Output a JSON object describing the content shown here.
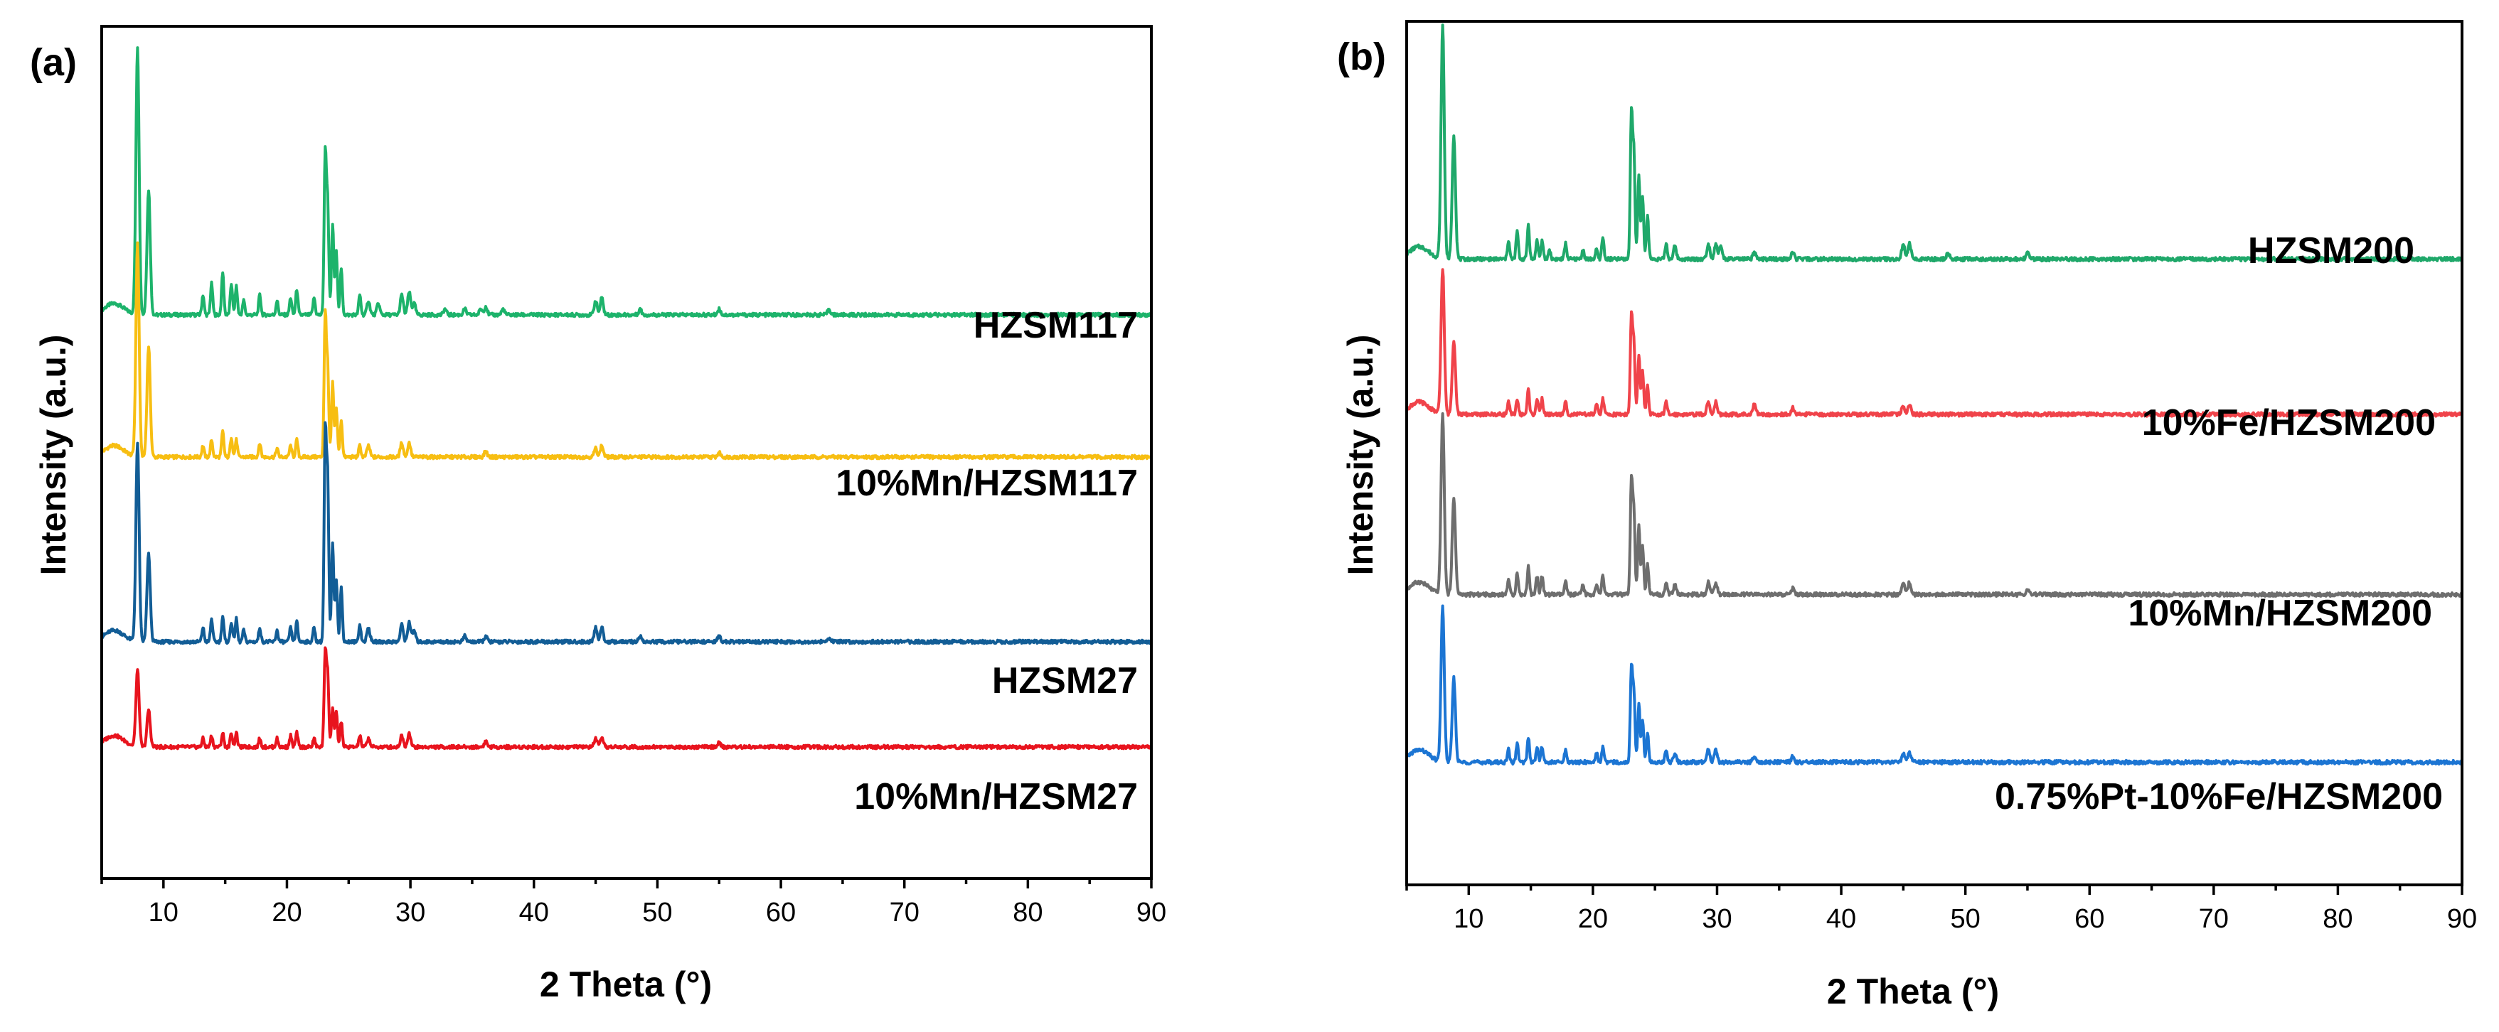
{
  "chart_data": [
    {
      "panel": "(a)",
      "type": "line",
      "xlabel": "2 Theta (°)",
      "ylabel": "Intensity (a.u.)",
      "xlim": [
        5,
        90
      ],
      "x_ticks": [
        10,
        20,
        30,
        40,
        50,
        60,
        70,
        80,
        90
      ],
      "y_ticks_shown": false,
      "offset_stacked": true,
      "series": [
        {
          "name": "HZSM117",
          "color": "#1db36b",
          "baseline": 1.8,
          "amp": 1.0,
          "peaks": [
            [
              7.9,
              0.94
            ],
            [
              8.8,
              0.44
            ],
            [
              13.2,
              0.07
            ],
            [
              13.9,
              0.11
            ],
            [
              14.8,
              0.15
            ],
            [
              15.5,
              0.11
            ],
            [
              15.9,
              0.1
            ],
            [
              16.5,
              0.05
            ],
            [
              17.8,
              0.07
            ],
            [
              19.2,
              0.05
            ],
            [
              20.3,
              0.06
            ],
            [
              20.8,
              0.09
            ],
            [
              22.2,
              0.06
            ],
            [
              23.1,
              0.56
            ],
            [
              23.3,
              0.38
            ],
            [
              23.7,
              0.32
            ],
            [
              24.0,
              0.22
            ],
            [
              24.4,
              0.16
            ],
            [
              25.9,
              0.07
            ],
            [
              26.6,
              0.05
            ],
            [
              27.4,
              0.04
            ],
            [
              29.3,
              0.07
            ],
            [
              29.9,
              0.08
            ],
            [
              30.3,
              0.04
            ],
            [
              32.8,
              0.02
            ],
            [
              34.4,
              0.02
            ],
            [
              35.7,
              0.02
            ],
            [
              36.1,
              0.03
            ],
            [
              37.5,
              0.02
            ],
            [
              45.0,
              0.05
            ],
            [
              45.5,
              0.06
            ],
            [
              48.6,
              0.02
            ],
            [
              55.0,
              0.02
            ],
            [
              63.9,
              0.02
            ]
          ]
        },
        {
          "name": "10%Mn/HZSM117",
          "color": "#f7be12",
          "baseline": 1.3,
          "amp": 1.0,
          "peaks": [
            [
              7.9,
              0.75
            ],
            [
              8.8,
              0.39
            ],
            [
              13.2,
              0.04
            ],
            [
              13.9,
              0.06
            ],
            [
              14.8,
              0.09
            ],
            [
              15.5,
              0.07
            ],
            [
              15.9,
              0.06
            ],
            [
              17.8,
              0.05
            ],
            [
              19.2,
              0.03
            ],
            [
              20.3,
              0.04
            ],
            [
              20.8,
              0.06
            ],
            [
              23.1,
              0.49
            ],
            [
              23.3,
              0.3
            ],
            [
              23.7,
              0.26
            ],
            [
              24.0,
              0.17
            ],
            [
              24.4,
              0.13
            ],
            [
              25.9,
              0.04
            ],
            [
              26.6,
              0.04
            ],
            [
              29.3,
              0.05
            ],
            [
              29.9,
              0.05
            ],
            [
              36.1,
              0.02
            ],
            [
              45.0,
              0.03
            ],
            [
              45.5,
              0.04
            ],
            [
              55.0,
              0.015
            ]
          ]
        },
        {
          "name": "HZSM27",
          "color": "#125d96",
          "baseline": 0.65,
          "amp": 1.0,
          "peaks": [
            [
              7.9,
              0.7
            ],
            [
              8.8,
              0.31
            ],
            [
              13.2,
              0.05
            ],
            [
              13.9,
              0.08
            ],
            [
              14.8,
              0.09
            ],
            [
              15.5,
              0.07
            ],
            [
              15.9,
              0.08
            ],
            [
              16.5,
              0.04
            ],
            [
              17.8,
              0.05
            ],
            [
              19.2,
              0.04
            ],
            [
              20.3,
              0.05
            ],
            [
              20.8,
              0.07
            ],
            [
              22.2,
              0.05
            ],
            [
              23.1,
              0.72
            ],
            [
              23.3,
              0.55
            ],
            [
              23.7,
              0.35
            ],
            [
              24.0,
              0.22
            ],
            [
              24.4,
              0.19
            ],
            [
              25.9,
              0.06
            ],
            [
              26.6,
              0.05
            ],
            [
              29.3,
              0.06
            ],
            [
              29.9,
              0.07
            ],
            [
              30.3,
              0.04
            ],
            [
              34.4,
              0.02
            ],
            [
              36.1,
              0.02
            ],
            [
              45.0,
              0.05
            ],
            [
              45.5,
              0.05
            ],
            [
              48.6,
              0.02
            ],
            [
              55.0,
              0.02
            ],
            [
              63.9,
              0.015
            ]
          ]
        },
        {
          "name": "10%Mn/HZSM27",
          "color": "#e8141e",
          "baseline": 0.28,
          "amp": 1.0,
          "peaks": [
            [
              7.9,
              0.27
            ],
            [
              8.8,
              0.13
            ],
            [
              13.2,
              0.03
            ],
            [
              13.9,
              0.04
            ],
            [
              14.8,
              0.05
            ],
            [
              15.5,
              0.05
            ],
            [
              15.9,
              0.05
            ],
            [
              17.8,
              0.03
            ],
            [
              19.2,
              0.03
            ],
            [
              20.3,
              0.04
            ],
            [
              20.8,
              0.05
            ],
            [
              22.2,
              0.03
            ],
            [
              23.1,
              0.33
            ],
            [
              23.3,
              0.25
            ],
            [
              23.7,
              0.14
            ],
            [
              24.0,
              0.12
            ],
            [
              24.4,
              0.09
            ],
            [
              25.9,
              0.04
            ],
            [
              26.6,
              0.03
            ],
            [
              29.3,
              0.04
            ],
            [
              29.9,
              0.05
            ],
            [
              36.1,
              0.02
            ],
            [
              45.0,
              0.03
            ],
            [
              45.5,
              0.03
            ],
            [
              55.0,
              0.015
            ]
          ]
        }
      ]
    },
    {
      "panel": "(b)",
      "type": "line",
      "xlabel": "2 Theta (°)",
      "ylabel": "Intensity (a.u.)",
      "xlim": [
        5,
        90
      ],
      "x_ticks": [
        10,
        20,
        30,
        40,
        50,
        60,
        70,
        80,
        90
      ],
      "y_ticks_shown": false,
      "offset_stacked": true,
      "series": [
        {
          "name": "HZSM200",
          "color": "#1fa86a",
          "baseline": 1.85,
          "amp": 1.0,
          "peaks": [
            [
              7.9,
              0.75
            ],
            [
              8.8,
              0.4
            ],
            [
              13.2,
              0.06
            ],
            [
              13.9,
              0.09
            ],
            [
              14.8,
              0.11
            ],
            [
              15.5,
              0.06
            ],
            [
              15.9,
              0.06
            ],
            [
              16.5,
              0.03
            ],
            [
              17.8,
              0.05
            ],
            [
              19.2,
              0.03
            ],
            [
              20.3,
              0.03
            ],
            [
              20.8,
              0.07
            ],
            [
              23.1,
              0.46
            ],
            [
              23.3,
              0.33
            ],
            [
              23.7,
              0.27
            ],
            [
              24.0,
              0.2
            ],
            [
              24.4,
              0.14
            ],
            [
              25.9,
              0.05
            ],
            [
              26.6,
              0.04
            ],
            [
              29.3,
              0.05
            ],
            [
              29.9,
              0.05
            ],
            [
              30.3,
              0.04
            ],
            [
              33.0,
              0.02
            ],
            [
              36.1,
              0.02
            ],
            [
              45.0,
              0.05
            ],
            [
              45.5,
              0.05
            ],
            [
              48.6,
              0.02
            ],
            [
              55.0,
              0.02
            ]
          ]
        },
        {
          "name": "10%Fe/HZSM200",
          "color": "#f0434a",
          "baseline": 1.35,
          "amp": 1.0,
          "peaks": [
            [
              7.9,
              0.47
            ],
            [
              8.8,
              0.24
            ],
            [
              13.2,
              0.04
            ],
            [
              13.9,
              0.05
            ],
            [
              14.8,
              0.08
            ],
            [
              15.5,
              0.05
            ],
            [
              15.9,
              0.05
            ],
            [
              17.8,
              0.04
            ],
            [
              20.3,
              0.03
            ],
            [
              20.8,
              0.05
            ],
            [
              23.1,
              0.31
            ],
            [
              23.3,
              0.22
            ],
            [
              23.7,
              0.19
            ],
            [
              24.0,
              0.14
            ],
            [
              24.4,
              0.09
            ],
            [
              25.9,
              0.04
            ],
            [
              29.3,
              0.04
            ],
            [
              29.9,
              0.04
            ],
            [
              33.0,
              0.03
            ],
            [
              36.1,
              0.02
            ],
            [
              45.0,
              0.03
            ],
            [
              45.5,
              0.03
            ]
          ]
        },
        {
          "name": "10%Mn/HZSM200",
          "color": "#6e6e6e",
          "baseline": 0.77,
          "amp": 1.0,
          "peaks": [
            [
              7.9,
              0.58
            ],
            [
              8.8,
              0.31
            ],
            [
              13.2,
              0.05
            ],
            [
              13.9,
              0.07
            ],
            [
              14.8,
              0.09
            ],
            [
              15.5,
              0.06
            ],
            [
              15.9,
              0.06
            ],
            [
              17.8,
              0.04
            ],
            [
              19.2,
              0.03
            ],
            [
              20.3,
              0.03
            ],
            [
              20.8,
              0.06
            ],
            [
              23.1,
              0.36
            ],
            [
              23.3,
              0.26
            ],
            [
              23.7,
              0.22
            ],
            [
              24.0,
              0.16
            ],
            [
              24.4,
              0.1
            ],
            [
              25.9,
              0.04
            ],
            [
              26.6,
              0.03
            ],
            [
              29.3,
              0.04
            ],
            [
              29.9,
              0.04
            ],
            [
              36.1,
              0.02
            ],
            [
              45.0,
              0.04
            ],
            [
              45.5,
              0.04
            ],
            [
              55.0,
              0.02
            ]
          ]
        },
        {
          "name": "0.75%Pt-10%Fe/HZSM200",
          "color": "#1c75d3",
          "baseline": 0.23,
          "amp": 1.0,
          "peaks": [
            [
              7.9,
              0.5
            ],
            [
              8.8,
              0.27
            ],
            [
              13.2,
              0.04
            ],
            [
              13.9,
              0.06
            ],
            [
              14.8,
              0.08
            ],
            [
              15.5,
              0.05
            ],
            [
              15.9,
              0.05
            ],
            [
              17.8,
              0.04
            ],
            [
              20.3,
              0.03
            ],
            [
              20.8,
              0.05
            ],
            [
              23.1,
              0.3
            ],
            [
              23.3,
              0.22
            ],
            [
              23.7,
              0.19
            ],
            [
              24.0,
              0.14
            ],
            [
              24.4,
              0.09
            ],
            [
              25.9,
              0.04
            ],
            [
              26.6,
              0.03
            ],
            [
              29.3,
              0.04
            ],
            [
              29.9,
              0.04
            ],
            [
              33.0,
              0.02
            ],
            [
              36.1,
              0.02
            ],
            [
              45.0,
              0.03
            ],
            [
              45.5,
              0.03
            ]
          ]
        }
      ]
    }
  ]
}
